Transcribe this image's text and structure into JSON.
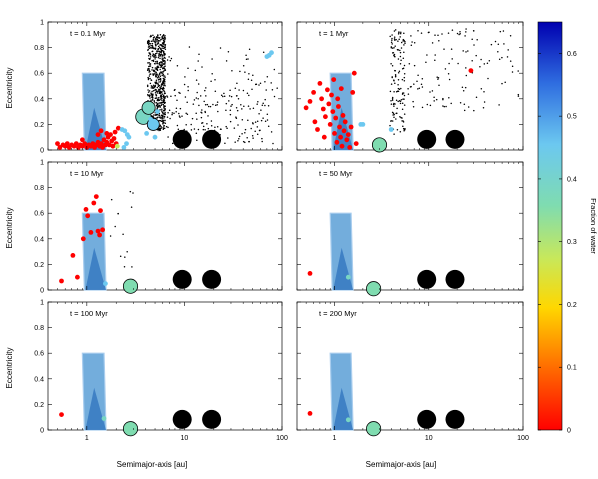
{
  "chart_data": {
    "type": "scatter",
    "xlabel": "Semimajor-axis [au]",
    "ylabel": "Eccentricity",
    "xscale": "log",
    "xlim": [
      0.4,
      100
    ],
    "ylim": [
      0,
      1
    ],
    "xticks": [
      1,
      10,
      100
    ],
    "xtick_labels": [
      "1",
      "10",
      "100"
    ],
    "yticks": [
      0,
      0.2,
      0.4,
      0.6,
      0.8,
      1
    ],
    "ytick_labels": [
      "0",
      "0.2",
      "0.4",
      "0.6",
      "0.8",
      "1"
    ],
    "colorbar": {
      "label": "Fraction of water",
      "min": 0,
      "max": 0.65,
      "ticks": [
        0,
        0.1,
        0.2,
        0.3,
        0.4,
        0.5,
        0.6
      ],
      "tick_labels": [
        "0",
        "0.1",
        "0.2",
        "0.3",
        "0.4",
        "0.5",
        "0.6"
      ]
    },
    "giant_planets": [
      {
        "a": 9.5,
        "e": 0.02
      },
      {
        "a": 19,
        "e": 0.02
      }
    ],
    "shaded_region": {
      "a_min": 0.9,
      "a_max": 1.5,
      "e_max": 0.6
    },
    "panels": [
      {
        "title": "t = 0.1 Myr",
        "embryos": [
          {
            "a": 0.5,
            "e": 0.05,
            "water": 0.0
          },
          {
            "a": 0.53,
            "e": 0.02,
            "water": 0.0
          },
          {
            "a": 0.57,
            "e": 0.04,
            "water": 0.0
          },
          {
            "a": 0.6,
            "e": 0.03,
            "water": 0.0
          },
          {
            "a": 0.63,
            "e": 0.05,
            "water": 0.0
          },
          {
            "a": 0.66,
            "e": 0.02,
            "water": 0.0
          },
          {
            "a": 0.7,
            "e": 0.04,
            "water": 0.0
          },
          {
            "a": 0.74,
            "e": 0.03,
            "water": 0.0
          },
          {
            "a": 0.78,
            "e": 0.05,
            "water": 0.0
          },
          {
            "a": 0.82,
            "e": 0.02,
            "water": 0.0
          },
          {
            "a": 0.86,
            "e": 0.04,
            "water": 0.0
          },
          {
            "a": 0.9,
            "e": 0.03,
            "water": 0.0
          },
          {
            "a": 0.95,
            "e": 0.05,
            "water": 0.0
          },
          {
            "a": 1.0,
            "e": 0.02,
            "water": 0.0
          },
          {
            "a": 1.05,
            "e": 0.04,
            "water": 0.0
          },
          {
            "a": 1.1,
            "e": 0.03,
            "water": 0.0
          },
          {
            "a": 1.15,
            "e": 0.05,
            "water": 0.0
          },
          {
            "a": 1.2,
            "e": 0.02,
            "water": 0.0
          },
          {
            "a": 1.25,
            "e": 0.04,
            "water": 0.0
          },
          {
            "a": 1.3,
            "e": 0.06,
            "water": 0.0
          },
          {
            "a": 1.35,
            "e": 0.03,
            "water": 0.0
          },
          {
            "a": 1.4,
            "e": 0.05,
            "water": 0.0
          },
          {
            "a": 1.45,
            "e": 0.02,
            "water": 0.0
          },
          {
            "a": 1.5,
            "e": 0.08,
            "water": 0.0
          },
          {
            "a": 1.55,
            "e": 0.04,
            "water": 0.0
          },
          {
            "a": 1.6,
            "e": 0.06,
            "water": 0.0
          },
          {
            "a": 1.65,
            "e": 0.1,
            "water": 0.0
          },
          {
            "a": 1.7,
            "e": 0.04,
            "water": 0.0
          },
          {
            "a": 1.75,
            "e": 0.12,
            "water": 0.0
          },
          {
            "a": 1.8,
            "e": 0.07,
            "water": 0.0
          },
          {
            "a": 1.85,
            "e": 0.03,
            "water": 0.0
          },
          {
            "a": 1.9,
            "e": 0.09,
            "water": 0.0
          },
          {
            "a": 1.95,
            "e": 0.14,
            "water": 0.0
          },
          {
            "a": 2.0,
            "e": 0.05,
            "water": 0.0
          },
          {
            "a": 1.4,
            "e": 0.15,
            "water": 0.0
          },
          {
            "a": 1.6,
            "e": 0.13,
            "water": 0.0
          },
          {
            "a": 2.05,
            "e": 0.03,
            "water": 0.3
          },
          {
            "a": 2.1,
            "e": 0.17,
            "water": 0.0
          },
          {
            "a": 1.3,
            "e": 0.12,
            "water": 0.0
          },
          {
            "a": 0.9,
            "e": 0.08,
            "water": 0.0
          },
          {
            "a": 2.3,
            "e": 0.16,
            "water": 0.52
          },
          {
            "a": 2.45,
            "e": 0.15,
            "water": 0.52
          },
          {
            "a": 2.6,
            "e": 0.12,
            "water": 0.52
          },
          {
            "a": 2.7,
            "e": 0.1,
            "water": 0.52
          },
          {
            "a": 2.55,
            "e": 0.05,
            "water": 0.52
          },
          {
            "a": 2.4,
            "e": 0.02,
            "water": 0.52
          },
          {
            "a": 3.8,
            "e": 0.26,
            "water": 0.45,
            "size": 1.4
          },
          {
            "a": 4.3,
            "e": 0.33,
            "water": 0.45,
            "size": 1.2
          },
          {
            "a": 4.8,
            "e": 0.2,
            "water": 0.52,
            "size": 1.1
          },
          {
            "a": 4.5,
            "e": 0.24,
            "water": 0.52
          },
          {
            "a": 5.0,
            "e": 0.1,
            "water": 0.52
          },
          {
            "a": 4.1,
            "e": 0.13,
            "water": 0.52
          },
          {
            "a": 5.3,
            "e": 0.3,
            "water": 0.52
          },
          {
            "a": 70,
            "e": 0.73,
            "water": 0.52
          },
          {
            "a": 78,
            "e": 0.76,
            "water": 0.52
          },
          {
            "a": 74,
            "e": 0.74,
            "water": 0.52
          }
        ]
      },
      {
        "title": "t = 1 Myr",
        "embryos": [
          {
            "a": 0.5,
            "e": 0.33,
            "water": 0.0
          },
          {
            "a": 0.55,
            "e": 0.38,
            "water": 0.0
          },
          {
            "a": 0.6,
            "e": 0.45,
            "water": 0.0
          },
          {
            "a": 0.62,
            "e": 0.22,
            "water": 0.0
          },
          {
            "a": 0.66,
            "e": 0.16,
            "water": 0.0
          },
          {
            "a": 0.7,
            "e": 0.52,
            "water": 0.0
          },
          {
            "a": 0.73,
            "e": 0.4,
            "water": 0.0
          },
          {
            "a": 0.76,
            "e": 0.32,
            "water": 0.0
          },
          {
            "a": 0.8,
            "e": 0.26,
            "water": 0.0
          },
          {
            "a": 0.84,
            "e": 0.47,
            "water": 0.0
          },
          {
            "a": 0.87,
            "e": 0.36,
            "water": 0.0
          },
          {
            "a": 0.9,
            "e": 0.2,
            "water": 0.0
          },
          {
            "a": 0.93,
            "e": 0.43,
            "water": 0.0
          },
          {
            "a": 0.96,
            "e": 0.3,
            "water": 0.0
          },
          {
            "a": 1.0,
            "e": 0.13,
            "water": 0.0
          },
          {
            "a": 1.03,
            "e": 0.25,
            "water": 0.0
          },
          {
            "a": 1.06,
            "e": 0.06,
            "water": 0.0
          },
          {
            "a": 1.1,
            "e": 0.34,
            "water": 0.0
          },
          {
            "a": 1.13,
            "e": 0.18,
            "water": 0.0
          },
          {
            "a": 1.16,
            "e": 0.1,
            "water": 0.0
          },
          {
            "a": 1.2,
            "e": 0.03,
            "water": 0.0
          },
          {
            "a": 1.23,
            "e": 0.27,
            "water": 0.0
          },
          {
            "a": 1.26,
            "e": 0.15,
            "water": 0.0
          },
          {
            "a": 1.3,
            "e": 0.22,
            "water": 0.0
          },
          {
            "a": 1.35,
            "e": 0.08,
            "water": 0.0
          },
          {
            "a": 1.4,
            "e": 0.12,
            "water": 0.0
          },
          {
            "a": 1.45,
            "e": 0.02,
            "water": 0.0
          },
          {
            "a": 1.5,
            "e": 0.18,
            "water": 0.0
          },
          {
            "a": 1.56,
            "e": 0.45,
            "water": 0.0
          },
          {
            "a": 1.62,
            "e": 0.6,
            "water": 0.0
          },
          {
            "a": 1.7,
            "e": 0.05,
            "water": 0.0
          },
          {
            "a": 1.18,
            "e": 0.48,
            "water": 0.0
          },
          {
            "a": 0.98,
            "e": 0.55,
            "water": 0.0
          },
          {
            "a": 1.08,
            "e": 0.4,
            "water": 0.0
          },
          {
            "a": 0.78,
            "e": 0.1,
            "water": 0.0
          },
          {
            "a": 28,
            "e": 0.62,
            "water": 0.0
          },
          {
            "a": 1.9,
            "e": 0.2,
            "water": 0.52
          },
          {
            "a": 2.0,
            "e": 0.2,
            "water": 0.52
          },
          {
            "a": 4.0,
            "e": 0.16,
            "water": 0.52
          },
          {
            "a": 3.0,
            "e": 0.04,
            "water": 0.42,
            "size": 1.3
          }
        ]
      },
      {
        "title": "t = 10 Myr",
        "embryos": [
          {
            "a": 0.55,
            "e": 0.07,
            "water": 0.0
          },
          {
            "a": 0.72,
            "e": 0.27,
            "water": 0.0
          },
          {
            "a": 0.8,
            "e": 0.1,
            "water": 0.0
          },
          {
            "a": 0.92,
            "e": 0.4,
            "water": 0.0
          },
          {
            "a": 0.98,
            "e": 0.63,
            "water": 0.0
          },
          {
            "a": 1.02,
            "e": 0.58,
            "water": 0.0
          },
          {
            "a": 1.1,
            "e": 0.45,
            "water": 0.0
          },
          {
            "a": 1.18,
            "e": 0.68,
            "water": 0.0
          },
          {
            "a": 1.25,
            "e": 0.73,
            "water": 0.0
          },
          {
            "a": 1.3,
            "e": 0.46,
            "water": 0.0
          },
          {
            "a": 1.35,
            "e": 0.43,
            "water": 0.0
          },
          {
            "a": 1.38,
            "e": 0.62,
            "water": 0.0
          },
          {
            "a": 1.45,
            "e": 0.47,
            "water": 0.0
          },
          {
            "a": 1.55,
            "e": 0.05,
            "water": 0.52
          },
          {
            "a": 2.8,
            "e": 0.03,
            "water": 0.42,
            "size": 1.3
          }
        ]
      },
      {
        "title": "t = 50 Myr",
        "embryos": [
          {
            "a": 0.55,
            "e": 0.13,
            "water": 0.0
          },
          {
            "a": 1.4,
            "e": 0.1,
            "water": 0.45
          },
          {
            "a": 2.6,
            "e": 0.01,
            "water": 0.42,
            "size": 1.3
          }
        ]
      },
      {
        "title": "t = 100 Myr",
        "embryos": [
          {
            "a": 0.55,
            "e": 0.12,
            "water": 0.0
          },
          {
            "a": 1.5,
            "e": 0.09,
            "water": 0.45
          },
          {
            "a": 2.8,
            "e": 0.01,
            "water": 0.42,
            "size": 1.3
          }
        ]
      },
      {
        "title": "t = 200 Myr",
        "embryos": [
          {
            "a": 0.55,
            "e": 0.13,
            "water": 0.0
          },
          {
            "a": 1.4,
            "e": 0.08,
            "water": 0.45
          },
          {
            "a": 2.6,
            "e": 0.01,
            "water": 0.42,
            "size": 1.3
          }
        ]
      }
    ]
  }
}
